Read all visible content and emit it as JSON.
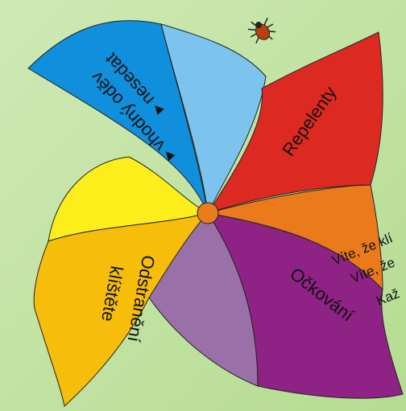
{
  "blades": {
    "repelenty": {
      "label": "Repelenty"
    },
    "ockovani": {
      "label": "Očkování"
    },
    "odstraneni": {
      "lines": [
        "Odstranění",
        "klíštěte"
      ]
    },
    "odev": {
      "lines": [
        "▸ vhodný oděv",
        "▸ nesedat"
      ]
    }
  },
  "side_text": [
    "Víte, že klí",
    "Víte, že",
    "Kaž"
  ]
}
